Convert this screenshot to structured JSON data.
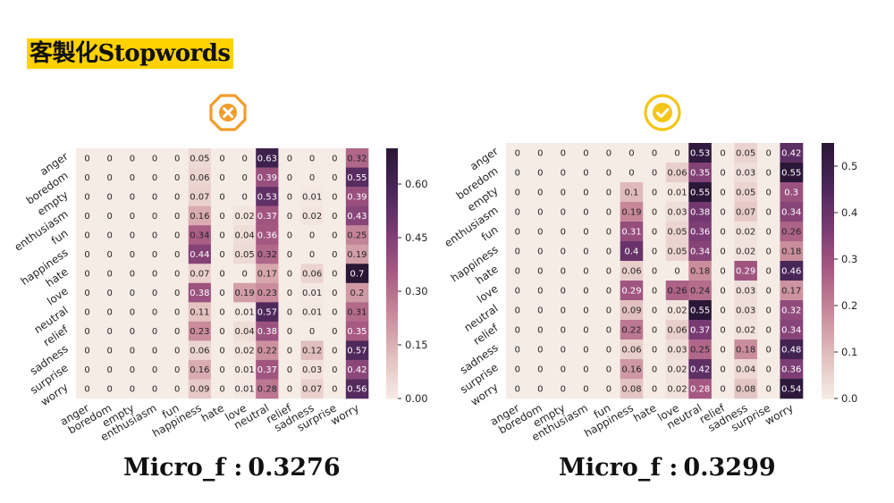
{
  "page": {
    "title": "客製化Stopwords"
  },
  "icons": {
    "left": "cross-octagon-icon",
    "right": "check-circle-icon",
    "accent": "#f39c2b",
    "check_color": "#f5c518"
  },
  "scores": [
    {
      "label": "Micro_f :",
      "value": "0.3276"
    },
    {
      "label": "Micro_f :",
      "value": "0.3299"
    }
  ],
  "chart_data": [
    {
      "type": "heatmap",
      "title": "",
      "xlabel": "",
      "ylabel": "",
      "categories": [
        "anger",
        "boredom",
        "empty",
        "enthusiasm",
        "fun",
        "happiness",
        "hate",
        "love",
        "neutral",
        "relief",
        "sadness",
        "surprise",
        "worry"
      ],
      "y_categories": [
        "anger",
        "boredom",
        "empty",
        "enthusiasm",
        "fun",
        "happiness",
        "hate",
        "love",
        "neutral",
        "relief",
        "sadness",
        "surprise",
        "worry"
      ],
      "values": [
        [
          0,
          0,
          0,
          0,
          0,
          0.05,
          0,
          0,
          0.63,
          0,
          0,
          0,
          0.32
        ],
        [
          0,
          0,
          0,
          0,
          0,
          0.06,
          0,
          0,
          0.39,
          0,
          0,
          0,
          0.55
        ],
        [
          0,
          0,
          0,
          0,
          0,
          0.07,
          0,
          0,
          0.53,
          0,
          0.01,
          0,
          0.39
        ],
        [
          0,
          0,
          0,
          0,
          0,
          0.16,
          0,
          0.02,
          0.37,
          0,
          0.02,
          0,
          0.43
        ],
        [
          0,
          0,
          0,
          0,
          0,
          0.34,
          0,
          0.04,
          0.36,
          0,
          0,
          0,
          0.25
        ],
        [
          0,
          0,
          0,
          0,
          0,
          0.44,
          0,
          0.05,
          0.32,
          0,
          0,
          0,
          0.19
        ],
        [
          0,
          0,
          0,
          0,
          0,
          0.07,
          0,
          0,
          0.17,
          0,
          0.06,
          0,
          0.7
        ],
        [
          0,
          0,
          0,
          0,
          0,
          0.38,
          0,
          0.19,
          0.23,
          0,
          0.01,
          0,
          0.2
        ],
        [
          0,
          0,
          0,
          0,
          0,
          0.11,
          0,
          0.01,
          0.57,
          0,
          0.01,
          0,
          0.31
        ],
        [
          0,
          0,
          0,
          0,
          0,
          0.23,
          0,
          0.04,
          0.38,
          0,
          0,
          0,
          0.35
        ],
        [
          0,
          0,
          0,
          0,
          0,
          0.06,
          0,
          0.02,
          0.22,
          0,
          0.12,
          0,
          0.57
        ],
        [
          0,
          0,
          0,
          0,
          0,
          0.16,
          0,
          0.01,
          0.37,
          0,
          0.03,
          0,
          0.42
        ],
        [
          0,
          0,
          0,
          0,
          0,
          0.09,
          0,
          0.01,
          0.28,
          0,
          0.07,
          0,
          0.56
        ]
      ],
      "colorbar": {
        "min": 0,
        "max": 0.7,
        "ticks": [
          0,
          0.15,
          0.3,
          0.45,
          0.6
        ],
        "tick_labels": [
          "0.00",
          "0.15",
          "0.30",
          "0.45",
          "0.60"
        ]
      },
      "colormap": [
        "#f6ece6",
        "#e2bfbe",
        "#c98b9b",
        "#a85a83",
        "#7a3b74",
        "#4a2659",
        "#2a1737"
      ]
    },
    {
      "type": "heatmap",
      "title": "",
      "xlabel": "",
      "ylabel": "",
      "categories": [
        "anger",
        "boredom",
        "empty",
        "enthusiasm",
        "fun",
        "happiness",
        "hate",
        "love",
        "neutral",
        "relief",
        "sadness",
        "surprise",
        "worry"
      ],
      "y_categories": [
        "anger",
        "boredom",
        "empty",
        "enthusiasm",
        "fun",
        "happiness",
        "hate",
        "love",
        "neutral",
        "relief",
        "sadness",
        "surprise",
        "worry"
      ],
      "values": [
        [
          0,
          0,
          0,
          0,
          0,
          0,
          0,
          0,
          0.53,
          0,
          0.05,
          0,
          0.42
        ],
        [
          0,
          0,
          0,
          0,
          0,
          0,
          0,
          0.06,
          0.35,
          0,
          0.03,
          0,
          0.55
        ],
        [
          0,
          0,
          0,
          0,
          0,
          0.1,
          0,
          0.01,
          0.55,
          0,
          0.05,
          0,
          0.3
        ],
        [
          0,
          0,
          0,
          0,
          0,
          0.19,
          0,
          0.03,
          0.38,
          0,
          0.07,
          0,
          0.34
        ],
        [
          0,
          0,
          0,
          0,
          0,
          0.31,
          0,
          0.05,
          0.36,
          0,
          0.02,
          0,
          0.26
        ],
        [
          0,
          0,
          0,
          0,
          0,
          0.4,
          0,
          0.05,
          0.34,
          0,
          0.02,
          0,
          0.18
        ],
        [
          0,
          0,
          0,
          0,
          0,
          0.06,
          0,
          0,
          0.18,
          0,
          0.29,
          0,
          0.46
        ],
        [
          0,
          0,
          0,
          0,
          0,
          0.29,
          0,
          0.26,
          0.24,
          0,
          0.03,
          0,
          0.17
        ],
        [
          0,
          0,
          0,
          0,
          0,
          0.09,
          0,
          0.02,
          0.55,
          0,
          0.03,
          0,
          0.32
        ],
        [
          0,
          0,
          0,
          0,
          0,
          0.22,
          0,
          0.06,
          0.37,
          0,
          0.02,
          0,
          0.34
        ],
        [
          0,
          0,
          0,
          0,
          0,
          0.06,
          0,
          0.03,
          0.25,
          0,
          0.18,
          0,
          0.48
        ],
        [
          0,
          0,
          0,
          0,
          0,
          0.16,
          0,
          0.02,
          0.42,
          0,
          0.04,
          0,
          0.36
        ],
        [
          0,
          0,
          0,
          0,
          0,
          0.08,
          0,
          0.02,
          0.28,
          0,
          0.08,
          0,
          0.54
        ]
      ],
      "colorbar": {
        "min": 0,
        "max": 0.55,
        "ticks": [
          0,
          0.1,
          0.2,
          0.3,
          0.4,
          0.5
        ],
        "tick_labels": [
          "0.0",
          "0.1",
          "0.2",
          "0.3",
          "0.4",
          "0.5"
        ]
      },
      "colormap": [
        "#f6ece6",
        "#e2bfbe",
        "#c98b9b",
        "#a85a83",
        "#7a3b74",
        "#4a2659",
        "#2a1737"
      ]
    }
  ]
}
